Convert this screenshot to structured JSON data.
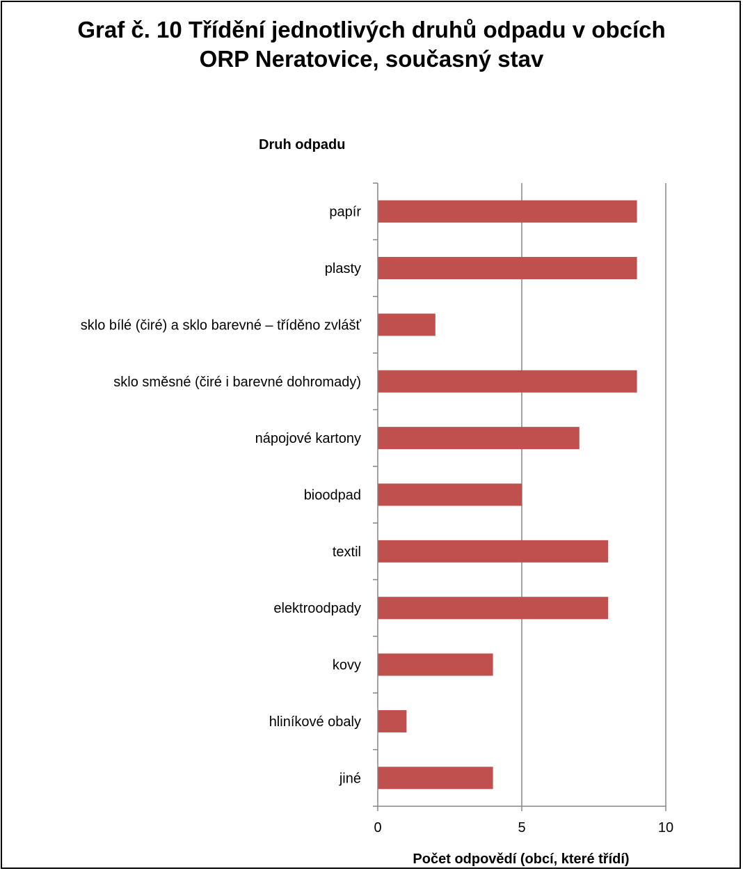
{
  "chart_data": {
    "type": "bar",
    "orientation": "horizontal",
    "title_lines": [
      "Graf č. 10 Třídění jednotlivých druhů odpadu v obcích",
      "ORP Neratovice, současný stav"
    ],
    "ylabel": "Druh odpadu",
    "xlabel": "Počet odpovědí (obcí, které třídí)",
    "categories": [
      "papír",
      "plasty",
      "sklo bílé (čiré) a sklo barevné – tříděno zvlášť",
      "sklo směsné (čiré i barevné dohromady)",
      "nápojové kartony",
      "bioodpad",
      "textil",
      "elektroodpady",
      "kovy",
      "hliníkové obaly",
      "jiné"
    ],
    "values": [
      9,
      9,
      2,
      9,
      7,
      5,
      8,
      8,
      4,
      1,
      4
    ],
    "xlim": [
      0,
      10
    ],
    "xticks": [
      "0",
      "5",
      "10"
    ],
    "grid": "vertical major",
    "legend": "none",
    "bar_color": "#c0504d",
    "grid_color": "#868686",
    "axis_color": "#868686"
  }
}
